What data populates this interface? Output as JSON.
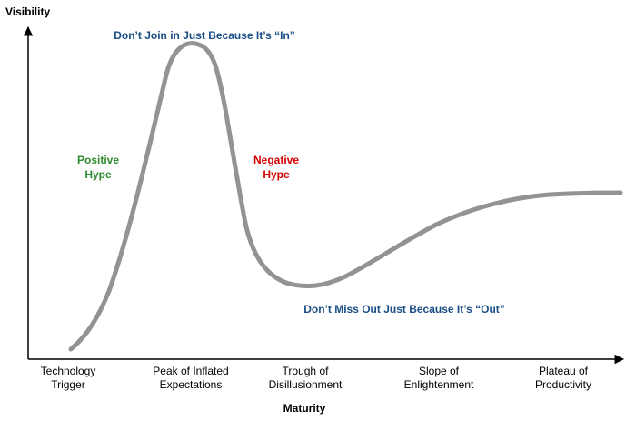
{
  "title": "",
  "y_axis_label": "Visibility",
  "x_axis_label": "Maturity",
  "phases": [
    {
      "line1": "Technology",
      "line2": "Trigger"
    },
    {
      "line1": "Peak of Inflated",
      "line2": "Expectations"
    },
    {
      "line1": "Trough of",
      "line2": "Disillusionment"
    },
    {
      "line1": "Slope of",
      "line2": "Enlightenment"
    },
    {
      "line1": "Plateau of",
      "line2": "Productivity"
    }
  ],
  "annotations": {
    "peak": "Don’t Join in Just Because It’s “In”",
    "trough": "Don’t Miss Out Just Because It’s “Out”",
    "positive": {
      "line1": "Positive",
      "line2": "Hype"
    },
    "negative": {
      "line1": "Negative",
      "line2": "Hype"
    }
  },
  "colors": {
    "curve": "#939393",
    "axis": "#000000",
    "advice": "#1a4e86",
    "positive": "#2e8b2e",
    "negative": "#d40000"
  }
}
